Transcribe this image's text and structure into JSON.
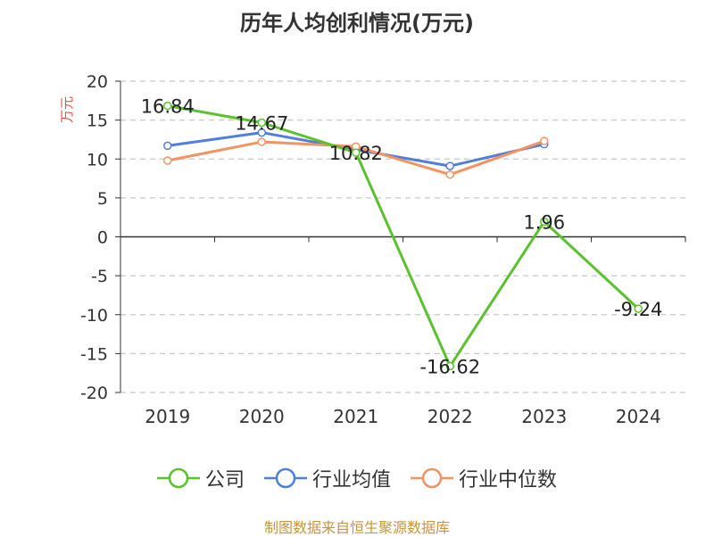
{
  "title": "历年人均创利情况(万元)",
  "source_note": "制图数据来自恒生聚源数据库",
  "chart_data": {
    "type": "line",
    "title": "历年人均创利情况(万元)",
    "ylabel": "万元",
    "xlabel": "",
    "categories": [
      "2019",
      "2020",
      "2021",
      "2022",
      "2023",
      "2024"
    ],
    "ylim": [
      -20,
      20
    ],
    "yticks": [
      20,
      15,
      10,
      5,
      0,
      -5,
      -10,
      -15,
      -20
    ],
    "grid": true,
    "legend_position": "bottom",
    "series": [
      {
        "name": "公司",
        "color": "#5ac22c",
        "values": [
          16.84,
          14.67,
          10.82,
          -16.62,
          1.96,
          -9.24
        ],
        "labels": [
          "16.84",
          "14.67",
          "10.82",
          "-16.62",
          "1.96",
          "-9.24"
        ]
      },
      {
        "name": "行业均值",
        "color": "#4f7fdb",
        "values": [
          11.7,
          13.4,
          11.2,
          9.1,
          11.9,
          null
        ]
      },
      {
        "name": "行业中位数",
        "color": "#f49262",
        "values": [
          9.8,
          12.2,
          11.6,
          8.0,
          12.3,
          null
        ]
      }
    ]
  }
}
